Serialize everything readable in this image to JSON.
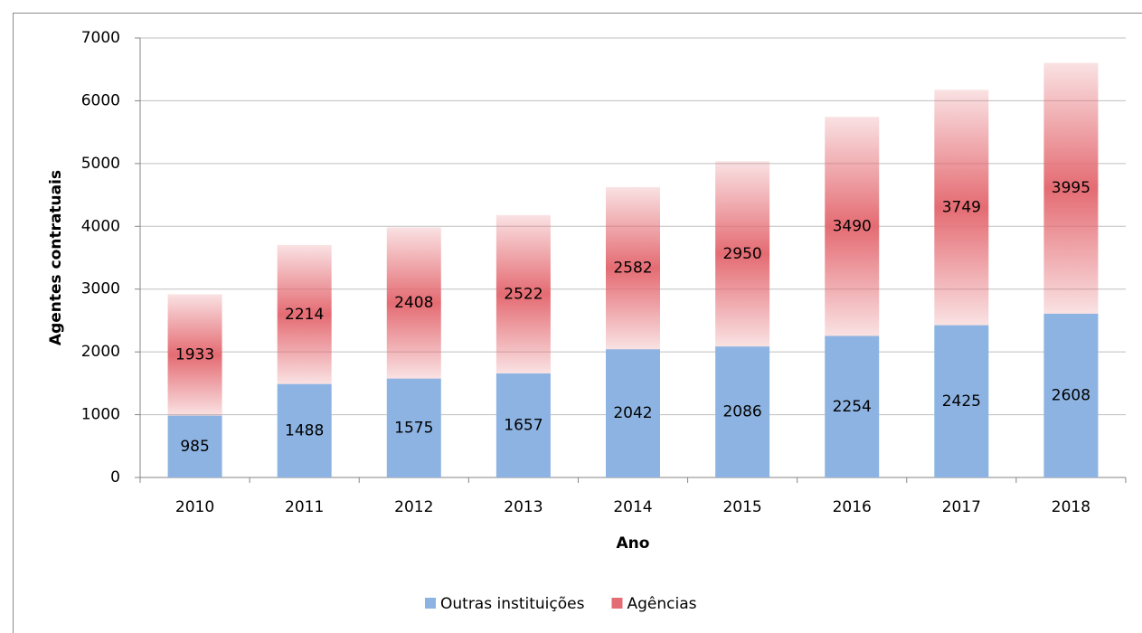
{
  "chart_data": {
    "type": "stacked-bar",
    "x_label": "Ano",
    "y_label": "Agentes contratuais",
    "categories": [
      "2010",
      "2011",
      "2012",
      "2013",
      "2014",
      "2015",
      "2016",
      "2017",
      "2018"
    ],
    "series": [
      {
        "name": "Outras instituições",
        "color": "#8db3e2",
        "values": [
          985,
          1488,
          1575,
          1657,
          2042,
          2086,
          2254,
          2425,
          2608
        ]
      },
      {
        "name": "Agências",
        "color": "#e46c73",
        "values": [
          1933,
          2214,
          2408,
          2522,
          2582,
          2950,
          3490,
          3749,
          3995
        ]
      }
    ],
    "ylim": [
      0,
      7000
    ],
    "yticks": [
      0,
      1000,
      2000,
      3000,
      4000,
      5000,
      6000,
      7000
    ],
    "grid": true,
    "legend": "bottom"
  }
}
